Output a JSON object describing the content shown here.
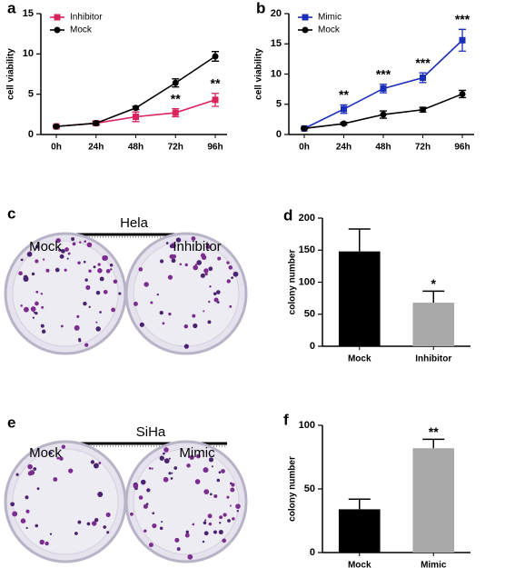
{
  "chart_data": [
    {
      "type": "line",
      "panel": "a",
      "ylabel": "cell viability",
      "categories": [
        "0h",
        "24h",
        "48h",
        "72h",
        "96h"
      ],
      "series": [
        {
          "name": "Inhibitor",
          "color": "#d8245a",
          "marker": "square",
          "values": [
            1.0,
            1.4,
            2.2,
            2.7,
            4.3
          ],
          "errors": [
            0.1,
            0.2,
            0.6,
            0.5,
            0.8
          ]
        },
        {
          "name": "Mock",
          "color": "#000000",
          "marker": "circle",
          "values": [
            1.0,
            1.4,
            3.3,
            6.4,
            9.7
          ],
          "errors": [
            0.1,
            0.2,
            0.2,
            0.5,
            0.6
          ]
        }
      ],
      "annotations": [
        null,
        null,
        null,
        "**",
        "**"
      ],
      "annotation_series": "Inhibitor",
      "ylim": [
        0,
        15
      ],
      "yticks": [
        0,
        5,
        10,
        15
      ],
      "legend": "top-left"
    },
    {
      "type": "line",
      "panel": "b",
      "ylabel": "cell viability",
      "categories": [
        "0h",
        "24h",
        "48h",
        "72h",
        "96h"
      ],
      "series": [
        {
          "name": "Mimic",
          "color": "#1a2fb8",
          "marker": "square",
          "values": [
            1.0,
            4.2,
            7.6,
            9.4,
            15.6
          ],
          "errors": [
            0.1,
            0.7,
            0.7,
            0.8,
            1.8
          ]
        },
        {
          "name": "Mock",
          "color": "#000000",
          "marker": "circle",
          "values": [
            1.0,
            1.8,
            3.3,
            4.1,
            6.7
          ],
          "errors": [
            0.1,
            0.2,
            0.6,
            0.4,
            0.6
          ]
        }
      ],
      "annotations": [
        null,
        "**",
        "***",
        "***",
        "***"
      ],
      "annotation_series": "Mimic",
      "ylim": [
        0,
        20
      ],
      "yticks": [
        0,
        5,
        10,
        15,
        20
      ],
      "legend": "top-left"
    },
    {
      "type": "bar",
      "panel": "d",
      "ylabel": "colony number",
      "categories": [
        "Mock",
        "Inhibitor"
      ],
      "values": [
        148,
        68
      ],
      "errors": [
        35,
        18
      ],
      "colors": [
        "#000000",
        "#a9a9a9"
      ],
      "annotations": [
        null,
        "*"
      ],
      "ylim": [
        0,
        200
      ],
      "yticks": [
        0,
        50,
        100,
        150,
        200
      ]
    },
    {
      "type": "bar",
      "panel": "f",
      "ylabel": "colony number",
      "categories": [
        "Mock",
        "Mimic"
      ],
      "values": [
        34,
        82
      ],
      "errors": [
        8,
        7
      ],
      "colors": [
        "#000000",
        "#a9a9a9"
      ],
      "annotations": [
        null,
        "**"
      ],
      "ylim": [
        0,
        100
      ],
      "yticks": [
        0,
        50,
        100
      ]
    }
  ],
  "photos": [
    {
      "panel": "c",
      "cell_line": "Hela",
      "labels": [
        "Mock",
        "Inhibitor"
      ]
    },
    {
      "panel": "e",
      "cell_line": "SiHa",
      "labels": [
        "Mock",
        "Mimic"
      ]
    }
  ]
}
